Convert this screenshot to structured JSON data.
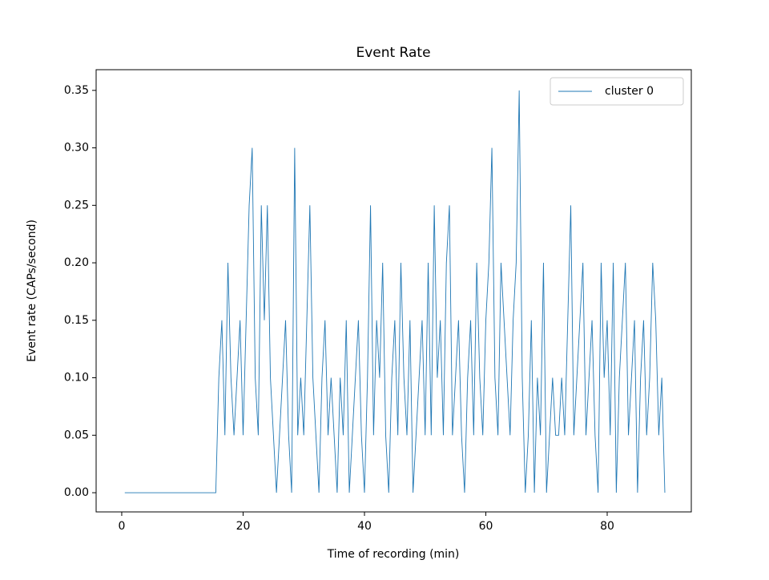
{
  "chart_data": {
    "type": "line",
    "title": "Event Rate",
    "xlabel": "Time of recording (min)",
    "ylabel": "Event rate (CAPs/second)",
    "x": [
      0.5,
      15.5,
      16,
      16.5,
      17,
      17.5,
      18,
      18.5,
      19,
      19.5,
      20,
      20.5,
      21,
      21.5,
      22,
      22.5,
      23,
      23.5,
      24,
      24.5,
      25,
      25.5,
      26,
      26.5,
      27,
      27.5,
      28,
      28.5,
      29,
      29.5,
      30,
      30.5,
      31,
      31.5,
      32,
      32.5,
      33,
      33.5,
      34,
      34.5,
      35,
      35.5,
      36,
      36.5,
      37,
      37.5,
      38,
      38.5,
      39,
      39.5,
      40,
      40.5,
      41,
      41.5,
      42,
      42.5,
      43,
      43.5,
      44,
      44.5,
      45,
      45.5,
      46,
      46.5,
      47,
      47.5,
      48,
      48.5,
      49,
      49.5,
      50,
      50.5,
      51,
      51.5,
      52,
      52.5,
      53,
      53.5,
      54,
      54.5,
      55,
      55.5,
      56,
      56.5,
      57,
      57.5,
      58,
      58.5,
      59,
      59.5,
      60,
      60.5,
      61,
      61.5,
      62,
      62.5,
      63,
      63.5,
      64,
      64.5,
      65,
      65.5,
      66,
      66.5,
      67,
      67.5,
      68,
      68.5,
      69,
      69.5,
      70,
      70.5,
      71,
      71.5,
      72,
      72.5,
      73,
      73.5,
      74,
      74.5,
      75,
      75.5,
      76,
      76.5,
      77,
      77.5,
      78,
      78.5,
      79,
      79.5,
      80,
      80.5,
      81,
      81.5,
      82,
      82.5,
      83,
      83.5,
      84,
      84.5,
      85,
      85.5,
      86,
      86.5,
      87,
      87.5,
      88,
      88.5,
      89,
      89.5
    ],
    "series": [
      {
        "name": "cluster 0",
        "color": "#1f77b4",
        "values": [
          0,
          0,
          0.1,
          0.15,
          0.05,
          0.2,
          0.1,
          0.05,
          0.1,
          0.15,
          0.05,
          0.15,
          0.25,
          0.3,
          0.1,
          0.05,
          0.25,
          0.15,
          0.25,
          0.1,
          0.05,
          0,
          0.05,
          0.1,
          0.15,
          0.05,
          0,
          0.3,
          0.05,
          0.1,
          0.05,
          0.15,
          0.25,
          0.1,
          0.05,
          0,
          0.1,
          0.15,
          0.05,
          0.1,
          0.05,
          0,
          0.1,
          0.05,
          0.15,
          0,
          0.05,
          0.1,
          0.15,
          0.05,
          0,
          0.1,
          0.25,
          0.05,
          0.15,
          0.1,
          0.2,
          0.05,
          0,
          0.1,
          0.15,
          0.05,
          0.2,
          0.1,
          0.05,
          0.15,
          0,
          0.05,
          0.1,
          0.15,
          0.05,
          0.2,
          0.05,
          0.25,
          0.1,
          0.15,
          0.05,
          0.2,
          0.25,
          0.05,
          0.1,
          0.15,
          0.05,
          0,
          0.1,
          0.15,
          0.05,
          0.2,
          0.1,
          0.05,
          0.15,
          0.2,
          0.3,
          0.1,
          0.05,
          0.2,
          0.15,
          0.1,
          0.05,
          0.15,
          0.2,
          0.35,
          0.1,
          0,
          0.05,
          0.15,
          0,
          0.1,
          0.05,
          0.2,
          0,
          0.05,
          0.1,
          0.05,
          0.05,
          0.1,
          0.05,
          0.15,
          0.25,
          0.05,
          0.1,
          0.15,
          0.2,
          0.05,
          0.1,
          0.15,
          0.05,
          0,
          0.2,
          0.1,
          0.15,
          0.05,
          0.2,
          0,
          0.1,
          0.15,
          0.2,
          0.05,
          0.1,
          0.15,
          0,
          0.1,
          0.15,
          0.05,
          0.1,
          0.2,
          0.15,
          0.05,
          0.1,
          0
        ]
      }
    ],
    "xlim": [
      -4.22,
      93.86
    ],
    "ylim": [
      -0.0167,
      0.368
    ],
    "xticks": [
      0,
      20,
      40,
      60,
      80
    ],
    "yticks": [
      {
        "value": 0,
        "label": "0.00"
      },
      {
        "value": 0.05,
        "label": "0.05"
      },
      {
        "value": 0.1,
        "label": "0.10"
      },
      {
        "value": 0.15,
        "label": "0.15"
      },
      {
        "value": 0.2,
        "label": "0.20"
      },
      {
        "value": 0.25,
        "label": "0.25"
      },
      {
        "value": 0.3,
        "label": "0.30"
      },
      {
        "value": 0.35,
        "label": "0.35"
      }
    ],
    "legend": "upper right"
  }
}
